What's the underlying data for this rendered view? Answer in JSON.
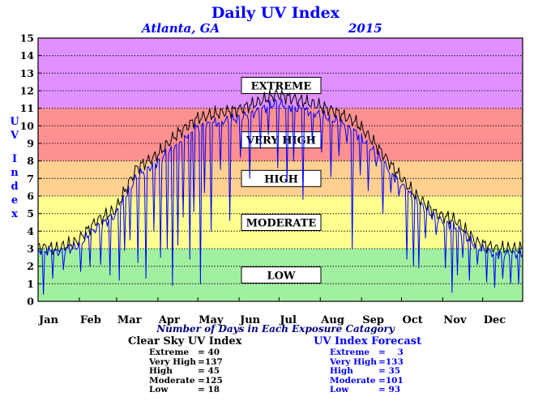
{
  "chart_data": {
    "type": "line",
    "title": "Daily UV Index",
    "location": "Atlanta, GA",
    "year": "2015",
    "ylabel": "UV Index",
    "xlabel": "",
    "ylim": [
      0,
      15
    ],
    "y_ticks": [
      "0",
      "1",
      "2",
      "3",
      "4",
      "5",
      "6",
      "7",
      "8",
      "9",
      "10",
      "11",
      "12",
      "13",
      "14",
      "15"
    ],
    "x_ticks": [
      "Jan",
      "Feb",
      "Mar",
      "Apr",
      "May",
      "Jun",
      "Jul",
      "Aug",
      "Sep",
      "Oct",
      "Nov",
      "Dec"
    ],
    "xlim_days": [
      1,
      365
    ],
    "grid": "horizontal dotted",
    "categories_bands": [
      {
        "label": "LOW",
        "range": [
          0,
          3
        ],
        "color": "#a0f0a0"
      },
      {
        "label": "MODERATE",
        "range": [
          3,
          6
        ],
        "color": "#ffff90"
      },
      {
        "label": "HIGH",
        "range": [
          6,
          8
        ],
        "color": "#ffd090"
      },
      {
        "label": "VERY HIGH",
        "range": [
          8,
          11
        ],
        "color": "#ff9090"
      },
      {
        "label": "EXTREME",
        "range": [
          11,
          15
        ],
        "color": "#e090ff"
      }
    ],
    "series": [
      {
        "name": "Clear Sky UV Index",
        "color": "#000000",
        "keypoints": [
          [
            1,
            3.1
          ],
          [
            15,
            3.0
          ],
          [
            30,
            3.4
          ],
          [
            45,
            4.6
          ],
          [
            59,
            5.2
          ],
          [
            75,
            7.6
          ],
          [
            90,
            8.3
          ],
          [
            105,
            9.5
          ],
          [
            120,
            10.4
          ],
          [
            135,
            10.7
          ],
          [
            150,
            10.9
          ],
          [
            165,
            11.3
          ],
          [
            180,
            11.8
          ],
          [
            195,
            11.5
          ],
          [
            210,
            11.2
          ],
          [
            225,
            10.8
          ],
          [
            240,
            10.2
          ],
          [
            255,
            8.9
          ],
          [
            270,
            7.4
          ],
          [
            285,
            6.0
          ],
          [
            300,
            5.0
          ],
          [
            315,
            4.6
          ],
          [
            330,
            3.4
          ],
          [
            345,
            3.0
          ],
          [
            365,
            3.0
          ]
        ]
      },
      {
        "name": "UV Index Forecast",
        "color": "#0000ff",
        "keypoints": [
          [
            1,
            2.9
          ],
          [
            15,
            2.8
          ],
          [
            30,
            3.1
          ],
          [
            45,
            4.2
          ],
          [
            59,
            4.9
          ],
          [
            75,
            7.1
          ],
          [
            90,
            7.9
          ],
          [
            105,
            9.0
          ],
          [
            120,
            9.9
          ],
          [
            135,
            10.2
          ],
          [
            150,
            10.4
          ],
          [
            165,
            10.8
          ],
          [
            180,
            11.3
          ],
          [
            195,
            11.0
          ],
          [
            210,
            10.7
          ],
          [
            225,
            10.3
          ],
          [
            240,
            9.6
          ],
          [
            255,
            8.4
          ],
          [
            270,
            7.0
          ],
          [
            285,
            5.7
          ],
          [
            300,
            4.7
          ],
          [
            315,
            4.3
          ],
          [
            330,
            3.1
          ],
          [
            345,
            2.7
          ],
          [
            365,
            2.7
          ]
        ],
        "dips": [
          [
            5,
            0.4
          ],
          [
            12,
            1.3
          ],
          [
            20,
            1.8
          ],
          [
            33,
            1.7
          ],
          [
            40,
            2.0
          ],
          [
            48,
            2.1
          ],
          [
            55,
            1.5
          ],
          [
            62,
            1.2
          ],
          [
            66,
            2.9
          ],
          [
            70,
            3.5
          ],
          [
            76,
            2.2
          ],
          [
            82,
            1.3
          ],
          [
            88,
            4.0
          ],
          [
            93,
            2.5
          ],
          [
            98,
            3.0
          ],
          [
            102,
            0.9
          ],
          [
            106,
            3.2
          ],
          [
            110,
            4.8
          ],
          [
            115,
            2.4
          ],
          [
            118,
            5.1
          ],
          [
            123,
            1.0
          ],
          [
            126,
            6.2
          ],
          [
            131,
            4.0
          ],
          [
            138,
            7.5
          ],
          [
            145,
            4.6
          ],
          [
            153,
            8.2
          ],
          [
            160,
            7.0
          ],
          [
            168,
            8.7
          ],
          [
            174,
            9.5
          ],
          [
            181,
            7.6
          ],
          [
            188,
            6.8
          ],
          [
            193,
            8.0
          ],
          [
            200,
            5.8
          ],
          [
            207,
            9.1
          ],
          [
            214,
            8.5
          ],
          [
            221,
            7.1
          ],
          [
            227,
            8.3
          ],
          [
            233,
            9.0
          ],
          [
            237,
            3.0
          ],
          [
            243,
            7.2
          ],
          [
            249,
            6.3
          ],
          [
            255,
            7.7
          ],
          [
            260,
            5.0
          ],
          [
            266,
            6.2
          ],
          [
            272,
            6.0
          ],
          [
            278,
            2.4
          ],
          [
            283,
            2.0
          ],
          [
            287,
            1.9
          ],
          [
            292,
            3.6
          ],
          [
            300,
            3.8
          ],
          [
            307,
            1.9
          ],
          [
            312,
            0.5
          ],
          [
            316,
            1.5
          ],
          [
            320,
            2.5
          ],
          [
            325,
            1.2
          ],
          [
            331,
            2.1
          ],
          [
            338,
            1.1
          ],
          [
            344,
            0.8
          ],
          [
            350,
            1.3
          ],
          [
            356,
            1.0
          ],
          [
            362,
            1.0
          ]
        ]
      }
    ]
  },
  "caption": "Number of Days in Each Exposure Catagory",
  "clear_sky": {
    "header": "Clear Sky UV Index",
    "rows": [
      {
        "label": "Extreme",
        "value": "= 40"
      },
      {
        "label": "Very High",
        "value": "=137"
      },
      {
        "label": "High",
        "value": "= 45"
      },
      {
        "label": "Moderate",
        "value": "=125"
      },
      {
        "label": "Low",
        "value": "= 18"
      }
    ]
  },
  "forecast": {
    "header": "UV Index Forecast",
    "rows": [
      {
        "label": "Extreme",
        "value": "=    3"
      },
      {
        "label": "Very High",
        "value": "=133"
      },
      {
        "label": "High",
        "value": "= 35"
      },
      {
        "label": "Moderate",
        "value": "=101"
      },
      {
        "label": "Low",
        "value": "= 93"
      }
    ]
  }
}
